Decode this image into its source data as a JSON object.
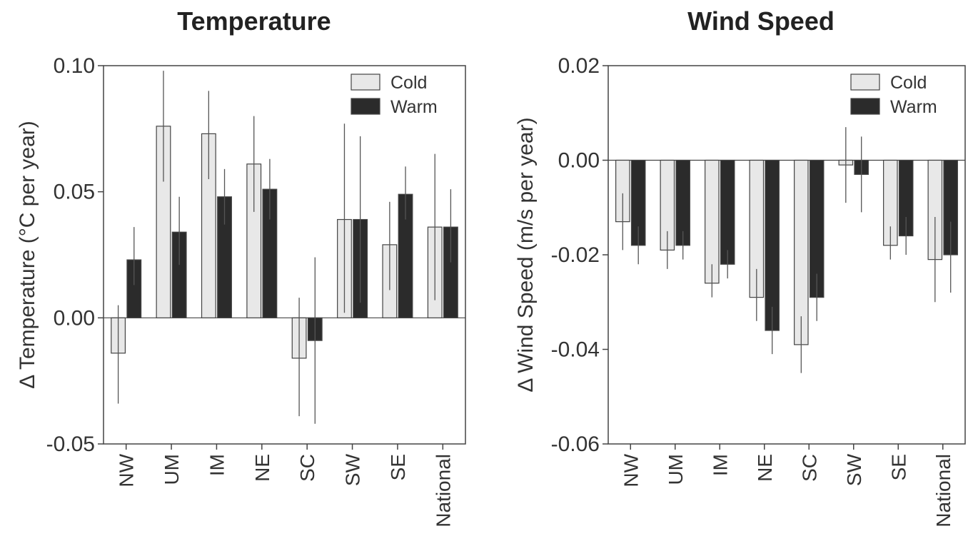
{
  "chart_data": [
    {
      "type": "bar",
      "title": "Temperature",
      "xlabel": "",
      "ylabel": "Δ Temperature (°C per year)",
      "categories": [
        "NW",
        "UM",
        "IM",
        "NE",
        "SC",
        "SW",
        "SE",
        "National"
      ],
      "ylim": [
        -0.05,
        0.1
      ],
      "yticks": [
        "0.10",
        "0.05",
        "0.00",
        "-0.05"
      ],
      "ytick_values": [
        0.1,
        0.05,
        0.0,
        -0.05
      ],
      "legend_position": "top-right",
      "grid": false,
      "series": [
        {
          "name": "Cold",
          "color": "#e8e8e8",
          "values": [
            -0.014,
            0.076,
            0.073,
            0.061,
            -0.016,
            0.039,
            0.029,
            0.036
          ],
          "error_low": [
            -0.034,
            0.054,
            0.055,
            0.042,
            -0.039,
            0.002,
            0.011,
            0.007
          ],
          "error_high": [
            0.005,
            0.098,
            0.09,
            0.08,
            0.008,
            0.077,
            0.046,
            0.065
          ]
        },
        {
          "name": "Warm",
          "color": "#2b2b2b",
          "values": [
            0.023,
            0.034,
            0.048,
            0.051,
            -0.009,
            0.039,
            0.049,
            0.036
          ],
          "error_low": [
            0.013,
            0.021,
            0.037,
            0.039,
            -0.042,
            0.006,
            0.039,
            0.022
          ],
          "error_high": [
            0.036,
            0.048,
            0.059,
            0.063,
            0.024,
            0.072,
            0.06,
            0.051
          ]
        }
      ]
    },
    {
      "type": "bar",
      "title": "Wind Speed",
      "xlabel": "",
      "ylabel": "Δ Wind Speed (m/s per year)",
      "categories": [
        "NW",
        "UM",
        "IM",
        "NE",
        "SC",
        "SW",
        "SE",
        "National"
      ],
      "ylim": [
        -0.06,
        0.02
      ],
      "yticks": [
        "0.02",
        "0.00",
        "-0.02",
        "-0.04",
        "-0.06"
      ],
      "ytick_values": [
        0.02,
        0.0,
        -0.02,
        -0.04,
        -0.06
      ],
      "legend_position": "top-right",
      "grid": false,
      "series": [
        {
          "name": "Cold",
          "color": "#e8e8e8",
          "values": [
            -0.013,
            -0.019,
            -0.026,
            -0.029,
            -0.039,
            -0.001,
            -0.018,
            -0.021
          ],
          "error_low": [
            -0.019,
            -0.023,
            -0.029,
            -0.034,
            -0.045,
            -0.009,
            -0.021,
            -0.03
          ],
          "error_high": [
            -0.007,
            -0.015,
            -0.022,
            -0.023,
            -0.033,
            0.007,
            -0.014,
            -0.012
          ]
        },
        {
          "name": "Warm",
          "color": "#2b2b2b",
          "values": [
            -0.018,
            -0.018,
            -0.022,
            -0.036,
            -0.029,
            -0.003,
            -0.016,
            -0.02
          ],
          "error_low": [
            -0.022,
            -0.021,
            -0.025,
            -0.041,
            -0.034,
            -0.011,
            -0.02,
            -0.028
          ],
          "error_high": [
            -0.014,
            -0.015,
            -0.019,
            -0.031,
            -0.024,
            0.005,
            -0.012,
            -0.013
          ]
        }
      ]
    }
  ]
}
